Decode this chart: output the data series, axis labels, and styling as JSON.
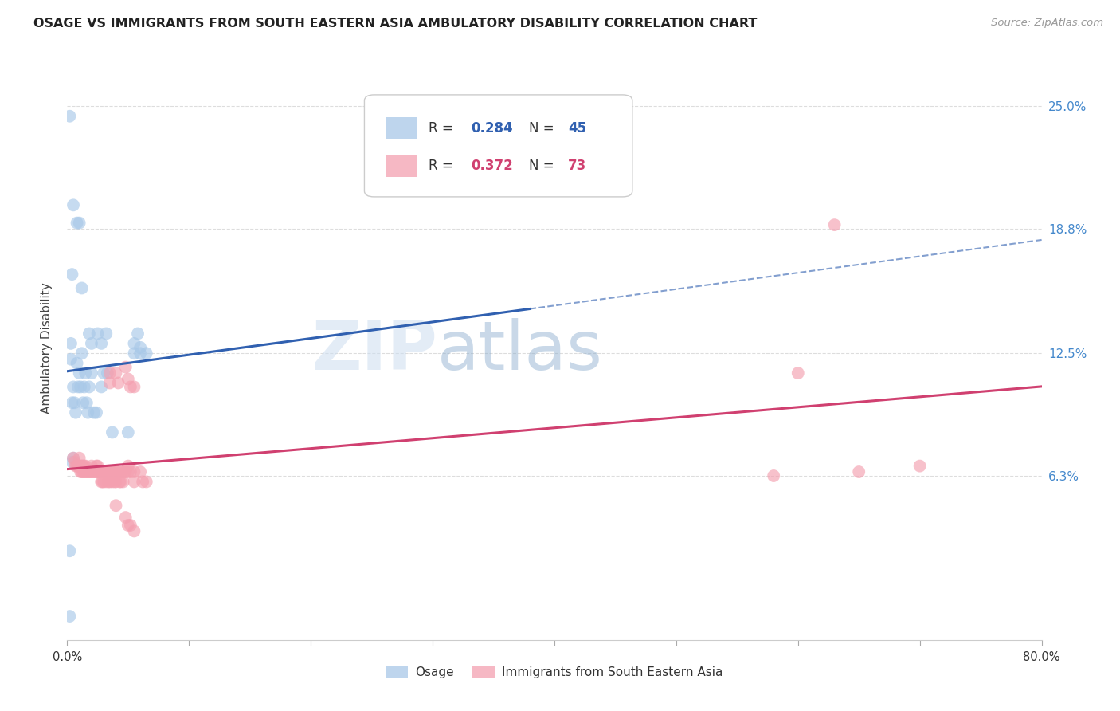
{
  "title": "OSAGE VS IMMIGRANTS FROM SOUTH EASTERN ASIA AMBULATORY DISABILITY CORRELATION CHART",
  "source": "Source: ZipAtlas.com",
  "ylabel": "Ambulatory Disability",
  "yticks": [
    "6.3%",
    "12.5%",
    "18.8%",
    "25.0%"
  ],
  "ytick_vals": [
    0.063,
    0.125,
    0.188,
    0.25
  ],
  "xmin": 0.0,
  "xmax": 0.8,
  "ymin": -0.02,
  "ymax": 0.275,
  "blue_color": "#a8c8e8",
  "pink_color": "#f4a0b0",
  "blue_line_color": "#3060b0",
  "pink_line_color": "#d04070",
  "blue_dots": [
    [
      0.002,
      0.245
    ],
    [
      0.005,
      0.2
    ],
    [
      0.008,
      0.191
    ],
    [
      0.01,
      0.191
    ],
    [
      0.004,
      0.165
    ],
    [
      0.012,
      0.158
    ],
    [
      0.003,
      0.13
    ],
    [
      0.012,
      0.125
    ],
    [
      0.018,
      0.135
    ],
    [
      0.02,
      0.13
    ],
    [
      0.025,
      0.135
    ],
    [
      0.028,
      0.13
    ],
    [
      0.032,
      0.135
    ],
    [
      0.055,
      0.13
    ],
    [
      0.06,
      0.128
    ],
    [
      0.003,
      0.122
    ],
    [
      0.008,
      0.12
    ],
    [
      0.01,
      0.115
    ],
    [
      0.015,
      0.115
    ],
    [
      0.02,
      0.115
    ],
    [
      0.03,
      0.115
    ],
    [
      0.033,
      0.115
    ],
    [
      0.005,
      0.108
    ],
    [
      0.009,
      0.108
    ],
    [
      0.011,
      0.108
    ],
    [
      0.014,
      0.108
    ],
    [
      0.018,
      0.108
    ],
    [
      0.028,
      0.108
    ],
    [
      0.055,
      0.125
    ],
    [
      0.058,
      0.135
    ],
    [
      0.06,
      0.125
    ],
    [
      0.065,
      0.125
    ],
    [
      0.004,
      0.1
    ],
    [
      0.006,
      0.1
    ],
    [
      0.013,
      0.1
    ],
    [
      0.016,
      0.1
    ],
    [
      0.007,
      0.095
    ],
    [
      0.017,
      0.095
    ],
    [
      0.022,
      0.095
    ],
    [
      0.024,
      0.095
    ],
    [
      0.05,
      0.085
    ],
    [
      0.037,
      0.085
    ],
    [
      0.005,
      0.072
    ],
    [
      0.004,
      0.07
    ],
    [
      0.002,
      0.025
    ],
    [
      0.002,
      -0.008
    ]
  ],
  "pink_dots": [
    [
      0.005,
      0.072
    ],
    [
      0.006,
      0.07
    ],
    [
      0.007,
      0.068
    ],
    [
      0.008,
      0.068
    ],
    [
      0.009,
      0.068
    ],
    [
      0.01,
      0.068
    ],
    [
      0.01,
      0.072
    ],
    [
      0.011,
      0.065
    ],
    [
      0.011,
      0.068
    ],
    [
      0.012,
      0.065
    ],
    [
      0.012,
      0.068
    ],
    [
      0.013,
      0.065
    ],
    [
      0.013,
      0.068
    ],
    [
      0.014,
      0.065
    ],
    [
      0.014,
      0.068
    ],
    [
      0.015,
      0.065
    ],
    [
      0.015,
      0.068
    ],
    [
      0.016,
      0.065
    ],
    [
      0.017,
      0.065
    ],
    [
      0.018,
      0.065
    ],
    [
      0.019,
      0.065
    ],
    [
      0.02,
      0.065
    ],
    [
      0.02,
      0.068
    ],
    [
      0.021,
      0.065
    ],
    [
      0.022,
      0.065
    ],
    [
      0.023,
      0.065
    ],
    [
      0.024,
      0.065
    ],
    [
      0.024,
      0.068
    ],
    [
      0.025,
      0.065
    ],
    [
      0.025,
      0.068
    ],
    [
      0.026,
      0.065
    ],
    [
      0.027,
      0.065
    ],
    [
      0.028,
      0.065
    ],
    [
      0.028,
      0.06
    ],
    [
      0.029,
      0.06
    ],
    [
      0.03,
      0.06
    ],
    [
      0.03,
      0.065
    ],
    [
      0.031,
      0.065
    ],
    [
      0.032,
      0.06
    ],
    [
      0.033,
      0.065
    ],
    [
      0.034,
      0.06
    ],
    [
      0.035,
      0.06
    ],
    [
      0.035,
      0.065
    ],
    [
      0.036,
      0.065
    ],
    [
      0.037,
      0.06
    ],
    [
      0.038,
      0.065
    ],
    [
      0.039,
      0.06
    ],
    [
      0.04,
      0.06
    ],
    [
      0.04,
      0.065
    ],
    [
      0.041,
      0.065
    ],
    [
      0.042,
      0.065
    ],
    [
      0.043,
      0.06
    ],
    [
      0.044,
      0.06
    ],
    [
      0.045,
      0.065
    ],
    [
      0.046,
      0.06
    ],
    [
      0.047,
      0.065
    ],
    [
      0.048,
      0.065
    ],
    [
      0.05,
      0.065
    ],
    [
      0.05,
      0.068
    ],
    [
      0.052,
      0.065
    ],
    [
      0.055,
      0.065
    ],
    [
      0.055,
      0.06
    ],
    [
      0.06,
      0.065
    ],
    [
      0.062,
      0.06
    ],
    [
      0.065,
      0.06
    ],
    [
      0.035,
      0.115
    ],
    [
      0.04,
      0.115
    ],
    [
      0.048,
      0.118
    ],
    [
      0.05,
      0.112
    ],
    [
      0.035,
      0.11
    ],
    [
      0.042,
      0.11
    ],
    [
      0.052,
      0.108
    ],
    [
      0.055,
      0.108
    ],
    [
      0.04,
      0.048
    ],
    [
      0.048,
      0.042
    ],
    [
      0.05,
      0.038
    ],
    [
      0.052,
      0.038
    ],
    [
      0.055,
      0.035
    ],
    [
      0.63,
      0.19
    ],
    [
      0.65,
      0.065
    ],
    [
      0.7,
      0.068
    ],
    [
      0.6,
      0.115
    ],
    [
      0.58,
      0.063
    ]
  ],
  "blue_line_solid_end": 0.38,
  "watermark_text": "ZIPatlas",
  "background_color": "#ffffff",
  "grid_color": "#dddddd"
}
